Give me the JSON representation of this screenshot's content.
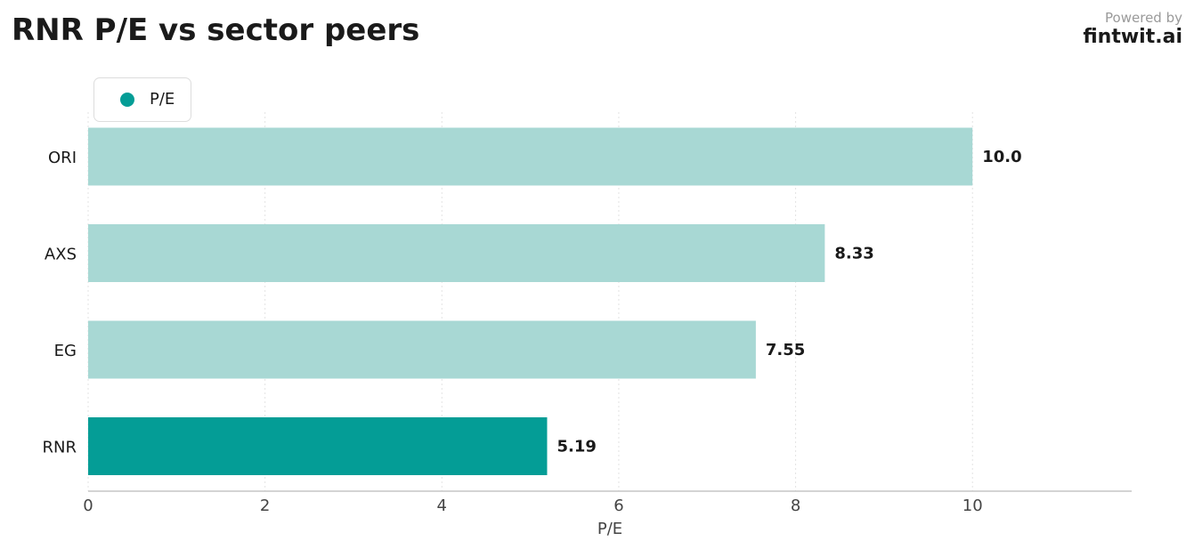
{
  "header": {
    "title": "RNR P/E vs sector peers",
    "powered_by": "Powered by",
    "brand": "fintwit.ai"
  },
  "colors": {
    "highlight": "#049d96",
    "peer": "#a8d8d4",
    "text": "#1a1a1a",
    "axis": "#bbbbbb",
    "grid": "#e3e3e3"
  },
  "chart_data": {
    "type": "bar",
    "orientation": "horizontal",
    "title": "RNR P/E vs sector peers",
    "xlabel": "P/E",
    "ylabel": "",
    "xlim": [
      0,
      11.8
    ],
    "xticks": [
      0,
      2,
      4,
      6,
      8,
      10
    ],
    "grid": "vertical dotted",
    "legend_position": "top-left",
    "categories": [
      "ORI",
      "AXS",
      "EG",
      "RNR"
    ],
    "series": [
      {
        "name": "P/E",
        "values": [
          10.0,
          8.33,
          7.55,
          5.19
        ],
        "labels": [
          "10.0",
          "8.33",
          "7.55",
          "5.19"
        ]
      }
    ],
    "highlight": "RNR"
  }
}
